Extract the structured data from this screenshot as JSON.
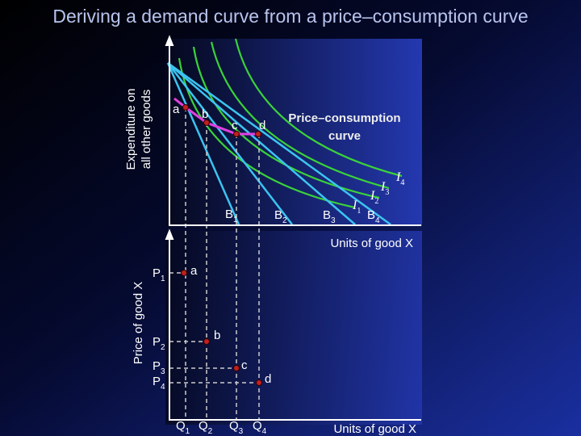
{
  "title": "Deriving a demand curve from a price–consumption curve",
  "top_panel": {
    "y_axis_label": [
      "Expenditure on",
      "all other goods"
    ],
    "x_axis_label": "Units of good X",
    "curve_label": [
      "Price–consumption",
      "curve"
    ],
    "points": [
      "a",
      "b",
      "c",
      "d"
    ],
    "budget_lines": [
      [
        "B",
        "1"
      ],
      [
        "B",
        "2"
      ],
      [
        "B",
        "3"
      ],
      [
        "B",
        "4"
      ]
    ],
    "indifference_curves": [
      [
        "I",
        "1"
      ],
      [
        "I",
        "2"
      ],
      [
        "I",
        "3"
      ],
      [
        "I",
        "4"
      ]
    ]
  },
  "bottom_panel": {
    "y_axis_label": "Price of good X",
    "x_axis_label": "Units of good X",
    "points": [
      "a",
      "b",
      "c",
      "d"
    ],
    "prices": [
      [
        "P",
        "1"
      ],
      [
        "P",
        "2"
      ],
      [
        "P",
        "3"
      ],
      [
        "P",
        "4"
      ]
    ],
    "quantities": [
      [
        "Q",
        "1"
      ],
      [
        "Q",
        "2"
      ],
      [
        "Q",
        "3"
      ],
      [
        "Q",
        "4"
      ]
    ]
  }
}
